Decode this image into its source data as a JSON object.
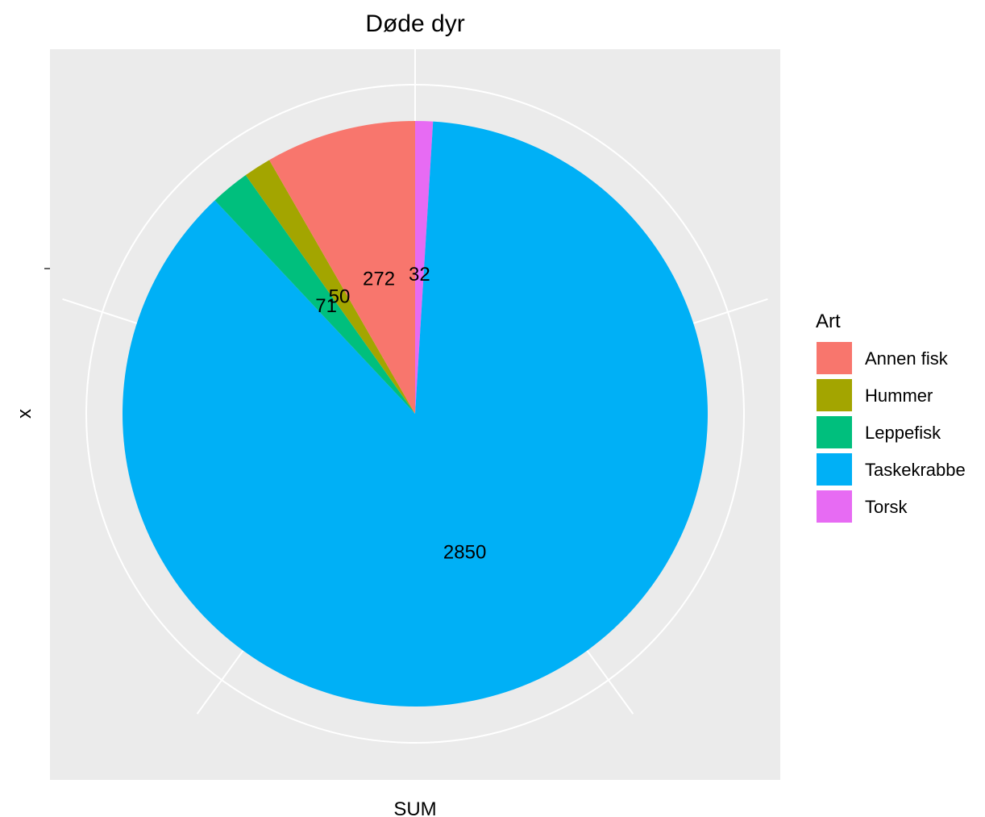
{
  "chart_data": {
    "type": "pie",
    "title": "Døde dyr",
    "xlabel": "SUM",
    "ylabel": "x",
    "legend_title": "Art",
    "legend_position": "right",
    "grid": true,
    "start": "top",
    "direction": "clockwise",
    "order": [
      "Torsk",
      "Taskekrabbe",
      "Leppefisk",
      "Hummer",
      "Annen fisk"
    ],
    "slices": [
      {
        "label": "Annen fisk",
        "value": 272,
        "color": "#F8766D"
      },
      {
        "label": "Hummer",
        "value": 50,
        "color": "#A3A500"
      },
      {
        "label": "Leppefisk",
        "value": 71,
        "color": "#00BF7D"
      },
      {
        "label": "Taskekrabbe",
        "value": 2850,
        "color": "#00B0F6"
      },
      {
        "label": "Torsk",
        "value": 32,
        "color": "#E76BF3"
      }
    ]
  }
}
